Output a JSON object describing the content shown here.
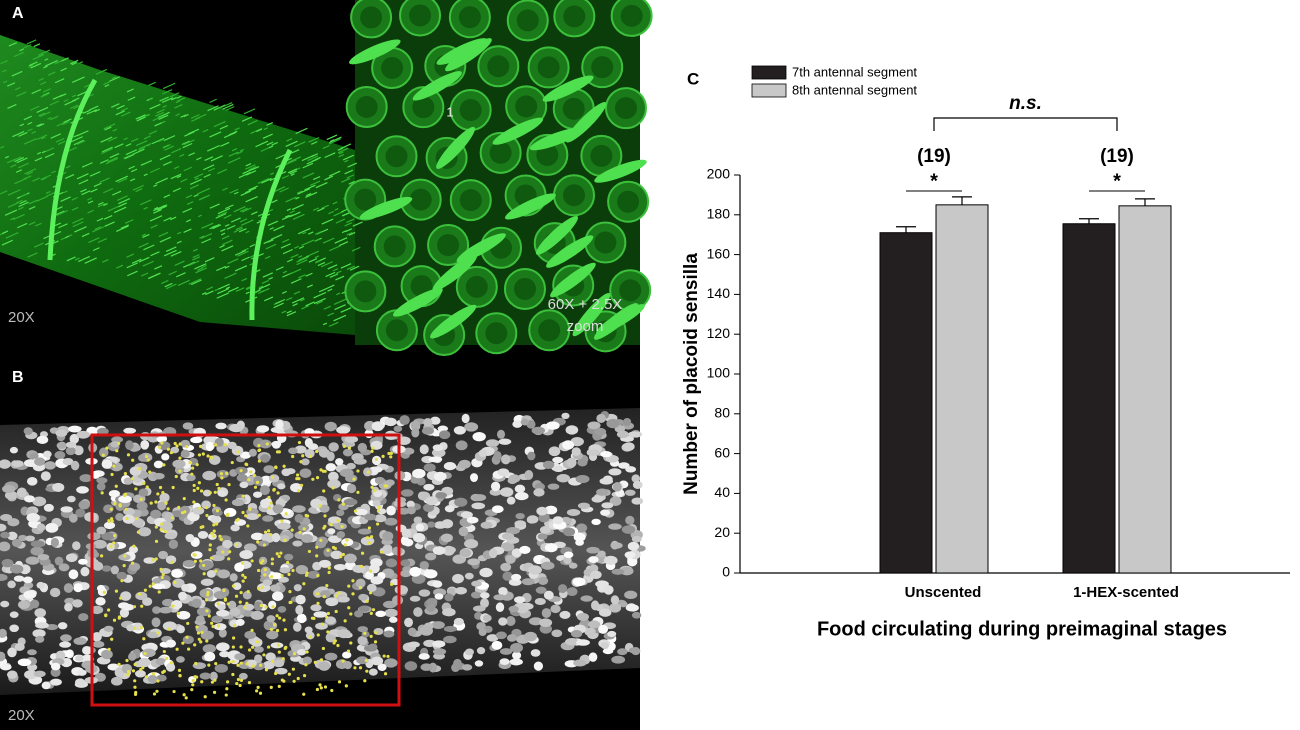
{
  "panels": {
    "a": {
      "label": "A",
      "magnification": "20X",
      "inset_magnification": [
        "60X + 2.5X",
        "zoom"
      ],
      "inset_marker": "1"
    },
    "b": {
      "label": "B",
      "magnification": "20X"
    },
    "c": {
      "label": "C"
    }
  },
  "chart_data": {
    "type": "bar",
    "xlabel": "Food circulating during preimaginal stages",
    "ylabel": "Number of placoid sensilla",
    "categories": [
      "Unscented",
      "1-HEX-scented"
    ],
    "series": [
      {
        "name": "7th antennal segment",
        "color": "#231f20",
        "values": [
          171,
          175.5
        ],
        "errors": [
          3,
          2.5
        ]
      },
      {
        "name": "8th antennal segment",
        "color": "#c8c8c8",
        "values": [
          185,
          184.5
        ],
        "errors": [
          4,
          3.5
        ]
      }
    ],
    "ylim": [
      0,
      200
    ],
    "yticks": [
      0,
      20,
      40,
      60,
      80,
      100,
      120,
      140,
      160,
      180,
      200
    ],
    "legend": "upper left",
    "annotations": [
      "(19)",
      "(19)",
      "*",
      "*",
      "n.s."
    ]
  }
}
